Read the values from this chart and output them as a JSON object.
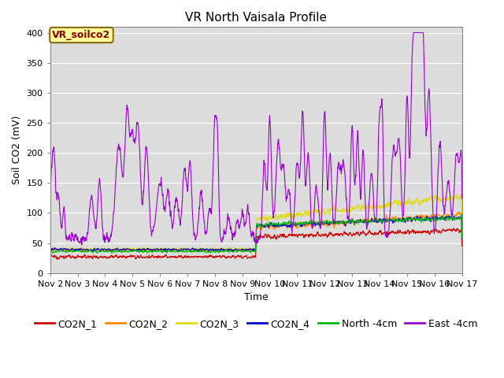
{
  "title": "VR North Vaisala Profile",
  "ylabel": "Soil CO2 (mV)",
  "xlabel": "Time",
  "ylim": [
    0,
    410
  ],
  "yticks": [
    0,
    50,
    100,
    150,
    200,
    250,
    300,
    350,
    400
  ],
  "xtick_labels": [
    "Nov 2",
    "Nov 3",
    "Nov 4",
    "Nov 5",
    "Nov 6",
    "Nov 7",
    "Nov 8",
    "Nov 9",
    "Nov 10",
    "Nov 11",
    "Nov 12",
    "Nov 13",
    "Nov 14",
    "Nov 15",
    "Nov 16",
    "Nov 17"
  ],
  "annotation_text": "VR_soilco2",
  "annotation_color": "#8B0000",
  "annotation_bg": "#FFFF99",
  "annotation_border": "#8B6914",
  "background_color": "#DCDCDC",
  "series": [
    {
      "label": "CO2N_1",
      "color": "#CC0000"
    },
    {
      "label": "CO2N_2",
      "color": "#FF8800"
    },
    {
      "label": "CO2N_3",
      "color": "#DDDD00"
    },
    {
      "label": "CO2N_4",
      "color": "#0000CC"
    },
    {
      "label": "North -4cm",
      "color": "#00BB00"
    },
    {
      "label": "East -4cm",
      "color": "#9900CC"
    }
  ],
  "title_fontsize": 11,
  "axis_fontsize": 9,
  "tick_fontsize": 8,
  "legend_fontsize": 9
}
